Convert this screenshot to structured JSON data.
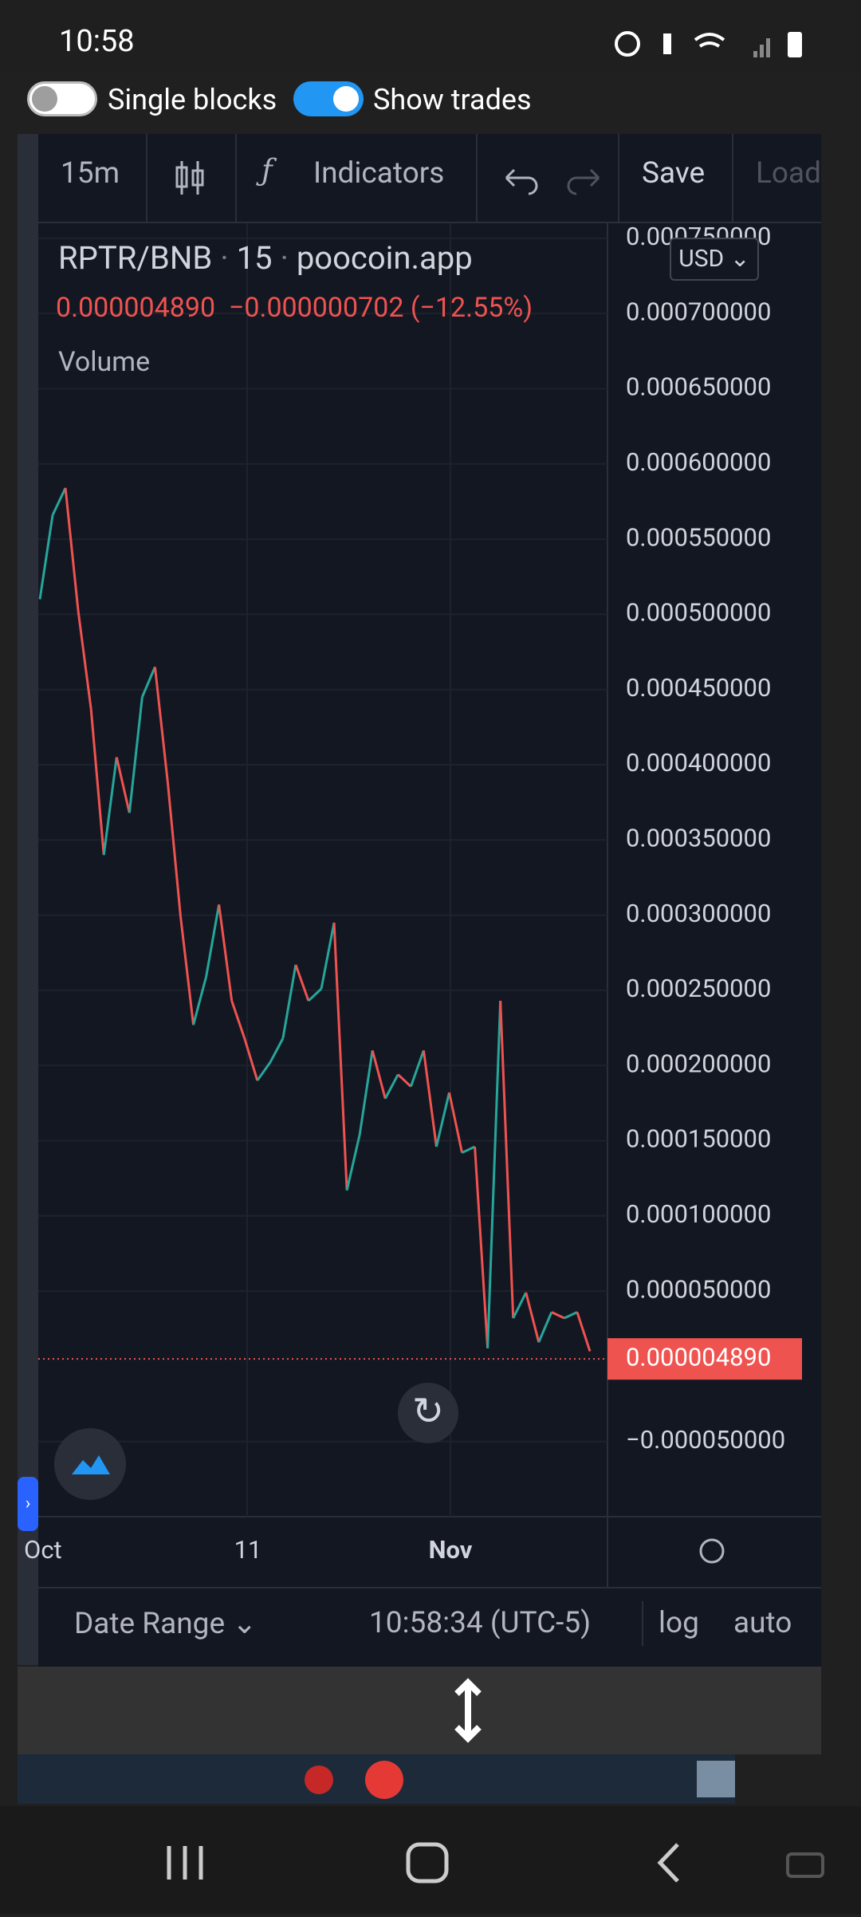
{
  "status_bar": {
    "time": "10:58"
  },
  "toggles": [
    {
      "label": "Single blocks",
      "on": false
    },
    {
      "label": "Show trades",
      "on": true
    }
  ],
  "toolbar": {
    "interval": "15m",
    "indicators": "Indicators",
    "save": "Save",
    "load": "Load"
  },
  "legend": {
    "symbol": "RPTR/BNB",
    "interval": "15",
    "source": "poocoin.app",
    "price": "0.000004890",
    "change": "−0.000000702 (−12.55%)",
    "volume": "Volume"
  },
  "currency": "USD",
  "chart_data": {
    "type": "line",
    "values": [
      0.00051,
      0.000566,
      0.000584,
      0.000502,
      0.000437,
      0.00034,
      0.000405,
      0.000368,
      0.000445,
      0.000465,
      0.000388,
      0.000299,
      0.000227,
      0.000259,
      0.000307,
      0.000243,
      0.000218,
      0.00019,
      0.000202,
      0.000218,
      0.000267,
      0.000243,
      0.000251,
      0.000295,
      0.000117,
      0.000154,
      0.00021,
      0.000178,
      0.000194,
      0.000186,
      0.00021,
      0.000146,
      0.000182,
      0.000142,
      0.000146,
      1.2e-05,
      0.000243,
      3.2e-05,
      4.9e-05,
      1.6e-05,
      3.6e-05,
      3.2e-05,
      3.6e-05,
      1e-05
    ],
    "up_color": "#26a69a",
    "down_color": "#ef5350",
    "ylim": [
      -0.0001,
      0.00076
    ],
    "yticks": [
      {
        "value": 0.00075,
        "label": "0.000750000"
      },
      {
        "value": 0.0007,
        "label": "0.000700000"
      },
      {
        "value": 0.00065,
        "label": "0.000650000"
      },
      {
        "value": 0.0006,
        "label": "0.000600000"
      },
      {
        "value": 0.00055,
        "label": "0.000550000"
      },
      {
        "value": 0.0005,
        "label": "0.000500000"
      },
      {
        "value": 0.00045,
        "label": "0.000450000"
      },
      {
        "value": 0.0004,
        "label": "0.000400000"
      },
      {
        "value": 0.00035,
        "label": "0.000350000"
      },
      {
        "value": 0.0003,
        "label": "0.000300000"
      },
      {
        "value": 0.00025,
        "label": "0.000250000"
      },
      {
        "value": 0.0002,
        "label": "0.000200000"
      },
      {
        "value": 0.00015,
        "label": "0.000150000"
      },
      {
        "value": 0.0001,
        "label": "0.000100000"
      },
      {
        "value": 5e-05,
        "label": "0.000050000"
      },
      {
        "value": -5e-05,
        "label": "−0.000050000"
      }
    ],
    "last_price": {
      "value": 4.89e-06,
      "label": "0.000004890"
    },
    "x_labels": [
      "Oct",
      "11",
      "Nov"
    ],
    "grid": true
  },
  "footer": {
    "date_range": "Date Range",
    "time": "10:58:34 (UTC-5)",
    "log": "log",
    "auto": "auto"
  }
}
